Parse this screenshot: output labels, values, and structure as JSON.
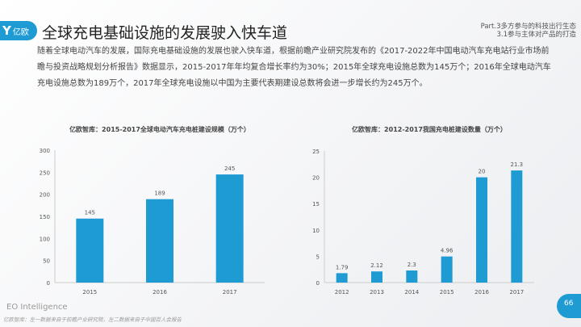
{
  "header": {
    "logo_text": "亿欧",
    "title": "全球充电基础设施的发展驶入快车道",
    "part_line1": "Part.3多方参与的科技出行生态",
    "part_line2": "3.1参与主体对产品的打造"
  },
  "paragraph": "随着全球电动汽车的发展，国际充电基础设施的发展也驶入快车道，根据前瞻产业研究院发布的《2017-2022年中国电动汽车充电站行业市场前瞻与投资战略规划分析报告》数据显示，2015-2017年年均复合增长率约为30%；2015年全球充电设施总数为145万个；2016年全球电动汽车充电设施总数为189万个，2017年全球充电设施以中国为主要代表期建设总数将会进一步增长约为245万个。",
  "chart_data": [
    {
      "type": "bar",
      "title": "亿欧智库：2015-2017全球电动汽车充电桩建设规模（万个）",
      "categories": [
        "2015",
        "2016",
        "2017"
      ],
      "values": [
        145,
        189,
        245
      ],
      "ylim": [
        0,
        300
      ],
      "yticks": [
        0,
        50,
        100,
        150,
        200,
        250,
        300
      ],
      "grid": false,
      "color": "#1f9bd4"
    },
    {
      "type": "bar",
      "title": "亿欧智库：2012-2017我国充电桩建设数量（万个）",
      "categories": [
        "2012",
        "2013",
        "2014",
        "2015",
        "2016",
        "2017"
      ],
      "values": [
        1.79,
        2.12,
        2.3,
        4.96,
        20,
        21.3
      ],
      "ylim": [
        0,
        25
      ],
      "yticks": [
        0,
        5,
        10,
        15,
        20,
        25
      ],
      "grid": false,
      "color": "#1f9bd4"
    }
  ],
  "footer": {
    "brand": "EO Intelligence",
    "note": "亿欧智库：左一数据来自于前瞻产业研究院，左二数据来自于中国百人会报告",
    "page": "66"
  }
}
